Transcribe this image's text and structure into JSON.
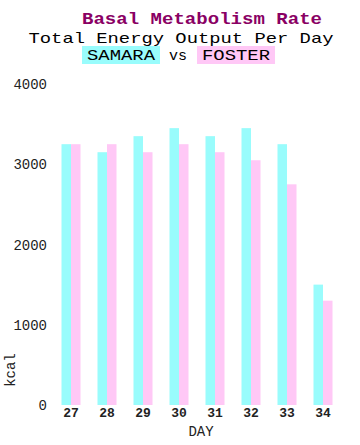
{
  "chart_data": {
    "type": "bar",
    "title": "Basal Metabolism Rate",
    "subtitle": "Total Energy Output Per Day",
    "annotations": [
      "vs"
    ],
    "x_label": "DAY",
    "y_label": "kcal",
    "categories": [
      "27",
      "28",
      "29",
      "30",
      "31",
      "32",
      "33",
      "34"
    ],
    "series": [
      {
        "name": "SAMARA",
        "color": "#99fcfc",
        "values": [
          3250,
          3150,
          3350,
          3450,
          3350,
          3450,
          3250,
          1500
        ]
      },
      {
        "name": "FOSTER",
        "color": "#ffc8f6",
        "values": [
          3250,
          3250,
          3150,
          3250,
          3150,
          3050,
          2750,
          1300
        ]
      }
    ],
    "ylim": [
      0,
      4000
    ],
    "yticks": [
      0,
      1000,
      2000,
      3000,
      4000
    ],
    "grid": false
  }
}
